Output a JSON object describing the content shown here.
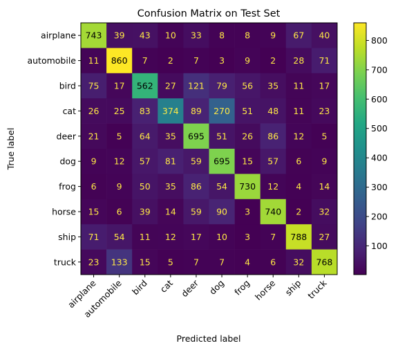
{
  "chart_data": {
    "type": "heatmap",
    "title": "Confusion Matrix on Test Set",
    "xlabel": "Predicted label",
    "ylabel": "True label",
    "labels": [
      "airplane",
      "automobile",
      "bird",
      "cat",
      "deer",
      "dog",
      "frog",
      "horse",
      "ship",
      "truck"
    ],
    "matrix": [
      [
        743,
        39,
        43,
        10,
        33,
        8,
        8,
        9,
        67,
        40
      ],
      [
        11,
        860,
        7,
        2,
        7,
        3,
        9,
        2,
        28,
        71
      ],
      [
        75,
        17,
        562,
        27,
        121,
        79,
        56,
        35,
        11,
        17
      ],
      [
        26,
        25,
        83,
        374,
        89,
        270,
        51,
        48,
        11,
        23
      ],
      [
        21,
        5,
        64,
        35,
        695,
        51,
        26,
        86,
        12,
        5
      ],
      [
        9,
        12,
        57,
        81,
        59,
        695,
        15,
        57,
        6,
        9
      ],
      [
        6,
        9,
        50,
        35,
        86,
        54,
        730,
        12,
        4,
        14
      ],
      [
        15,
        6,
        39,
        14,
        59,
        90,
        3,
        740,
        2,
        32
      ],
      [
        71,
        54,
        11,
        12,
        17,
        10,
        3,
        7,
        788,
        27
      ],
      [
        23,
        133,
        15,
        5,
        7,
        7,
        4,
        6,
        32,
        768
      ]
    ],
    "colormap": "viridis",
    "colorbar": {
      "ticks": [
        100,
        200,
        300,
        400,
        500,
        600,
        700,
        800
      ]
    },
    "value_range": [
      2,
      860
    ],
    "text_color": "#ffe945"
  }
}
